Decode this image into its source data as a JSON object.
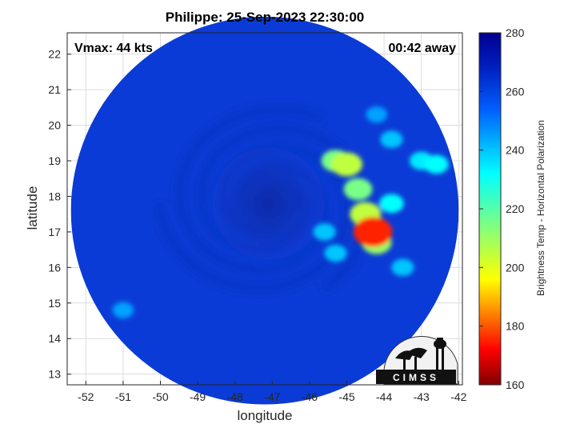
{
  "title": "Philippe: 25-Sep-2023 22:30:00",
  "vmax_label": "Vmax: 44 kts",
  "time_label": "00:42 away",
  "xlabel": "longitude",
  "ylabel": "latitude",
  "colorbar_label": "Brightness Temp - Horizontal Polarization",
  "logo_text": "CIMSS",
  "colors": {
    "background": "#0b3bd6",
    "cold_cloud": "#cc1010",
    "warm_ocean": "#0a2fb8"
  },
  "chart_data": {
    "type": "heatmap",
    "title": "Philippe: 25-Sep-2023 22:30:00",
    "xlabel": "longitude",
    "ylabel": "latitude",
    "xlim": [
      -52.5,
      -41.9
    ],
    "ylim": [
      12.7,
      22.6
    ],
    "xticks": [
      -52,
      -51,
      -50,
      -49,
      -48,
      -47,
      -46,
      -45,
      -44,
      -43,
      -42
    ],
    "yticks": [
      13,
      14,
      15,
      16,
      17,
      18,
      19,
      20,
      21,
      22
    ],
    "grid": true,
    "colorbar": {
      "label": "Brightness Temp - Horizontal Polarization",
      "range": [
        160,
        280
      ],
      "ticks": [
        160,
        180,
        200,
        220,
        240,
        260,
        280
      ]
    },
    "swath": {
      "center": [
        -47.2,
        17.6
      ],
      "radius_deg": 5.2
    },
    "storm_center": [
      -47.1,
      17.8
    ],
    "features": [
      {
        "lon": -44.3,
        "lat": 17.0,
        "tb": 175
      },
      {
        "lon": -44.5,
        "lat": 17.5,
        "tb": 205
      },
      {
        "lon": -44.2,
        "lat": 16.7,
        "tb": 210
      },
      {
        "lon": -45.0,
        "lat": 18.9,
        "tb": 205
      },
      {
        "lon": -45.3,
        "lat": 19.0,
        "tb": 215
      },
      {
        "lon": -44.7,
        "lat": 18.2,
        "tb": 215
      },
      {
        "lon": -43.8,
        "lat": 17.8,
        "tb": 232
      },
      {
        "lon": -43.0,
        "lat": 19.0,
        "tb": 235
      },
      {
        "lon": -42.6,
        "lat": 18.9,
        "tb": 232
      },
      {
        "lon": -43.8,
        "lat": 19.6,
        "tb": 240
      },
      {
        "lon": -44.2,
        "lat": 20.3,
        "tb": 245
      },
      {
        "lon": -45.6,
        "lat": 17.0,
        "tb": 240
      },
      {
        "lon": -43.5,
        "lat": 16.0,
        "tb": 240
      },
      {
        "lon": -45.3,
        "lat": 16.4,
        "tb": 240
      },
      {
        "lon": -51.0,
        "lat": 14.8,
        "tb": 245
      }
    ]
  }
}
